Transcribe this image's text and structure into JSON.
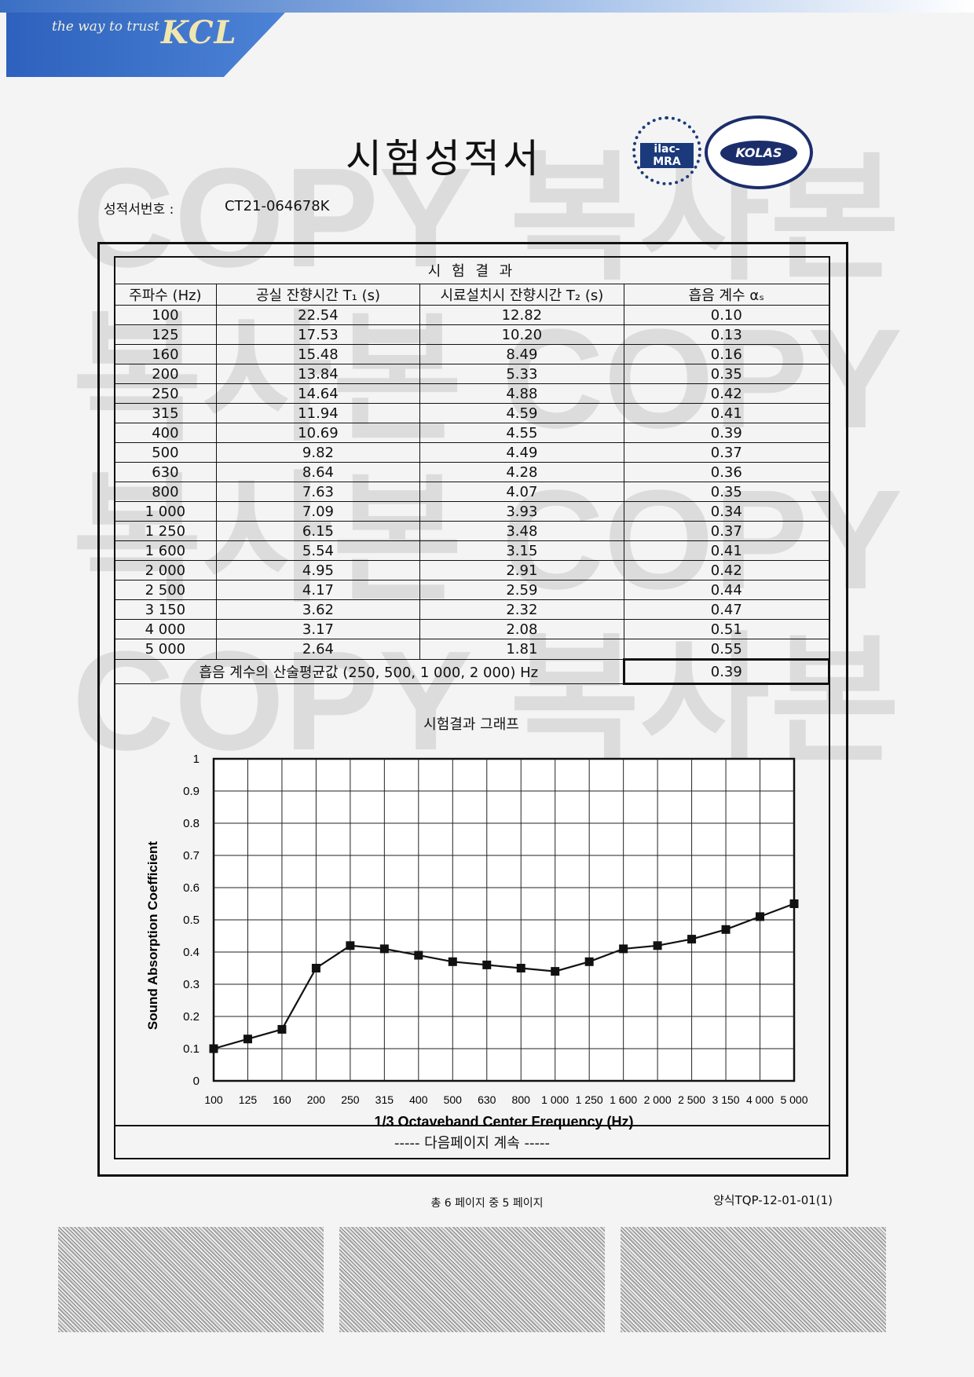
{
  "header": {
    "tagline": "the way to trust",
    "brand": "KCL",
    "title": "시험성적서",
    "report_label": "성적서번호 :",
    "report_no": "CT21-064678K"
  },
  "badges": {
    "ilac": "ilac-MRA",
    "kolas": "KOLAS"
  },
  "watermark_lines": [
    "COPY 복사본",
    "복사본 COPY",
    "복사본 COPY",
    "COPY 복사본"
  ],
  "results_table": {
    "caption": "시 험 결 과",
    "headers": [
      "주파수 (Hz)",
      "공실 잔향시간 T₁ (s)",
      "시료설치시 잔향시간 T₂ (s)",
      "흡음 계수 αₛ"
    ],
    "rows": [
      [
        "100",
        "22.54",
        "12.82",
        "0.10"
      ],
      [
        "125",
        "17.53",
        "10.20",
        "0.13"
      ],
      [
        "160",
        "15.48",
        "8.49",
        "0.16"
      ],
      [
        "200",
        "13.84",
        "5.33",
        "0.35"
      ],
      [
        "250",
        "14.64",
        "4.88",
        "0.42"
      ],
      [
        "315",
        "11.94",
        "4.59",
        "0.41"
      ],
      [
        "400",
        "10.69",
        "4.55",
        "0.39"
      ],
      [
        "500",
        "9.82",
        "4.49",
        "0.37"
      ],
      [
        "630",
        "8.64",
        "4.28",
        "0.36"
      ],
      [
        "800",
        "7.63",
        "4.07",
        "0.35"
      ],
      [
        "1 000",
        "7.09",
        "3.93",
        "0.34"
      ],
      [
        "1 250",
        "6.15",
        "3.48",
        "0.37"
      ],
      [
        "1 600",
        "5.54",
        "3.15",
        "0.41"
      ],
      [
        "2 000",
        "4.95",
        "2.91",
        "0.42"
      ],
      [
        "2 500",
        "4.17",
        "2.59",
        "0.44"
      ],
      [
        "3 150",
        "3.62",
        "2.32",
        "0.47"
      ],
      [
        "4 000",
        "3.17",
        "2.08",
        "0.51"
      ],
      [
        "5 000",
        "2.64",
        "1.81",
        "0.55"
      ]
    ],
    "average_label": "흡음 계수의 산술평균값 (250, 500, 1 000, 2 000) Hz",
    "average_value": "0.39"
  },
  "graph_caption": "시험결과 그래프",
  "chart_data": {
    "type": "line",
    "title": "",
    "xlabel": "1/3 Octaveband Center Frequency (Hz)",
    "ylabel": "Sound Absorption Coefficient",
    "categories": [
      "100",
      "125",
      "160",
      "200",
      "250",
      "315",
      "400",
      "500",
      "630",
      "800",
      "1 000",
      "1 250",
      "1 600",
      "2 000",
      "2 500",
      "3 150",
      "4 000",
      "5 000"
    ],
    "values": [
      0.1,
      0.13,
      0.16,
      0.35,
      0.42,
      0.41,
      0.39,
      0.37,
      0.36,
      0.35,
      0.34,
      0.37,
      0.41,
      0.42,
      0.44,
      0.47,
      0.51,
      0.55
    ],
    "y_ticks": [
      "0",
      "0.1",
      "0.2",
      "0.3",
      "0.4",
      "0.5",
      "0.6",
      "0.7",
      "0.8",
      "0.9",
      "1"
    ],
    "ylim": [
      0,
      1
    ],
    "grid": true,
    "marker": "square",
    "line_color": "#111111"
  },
  "footer": {
    "continue_text": "----- 다음페이지 계속 -----",
    "page_info": "총 6 페이지 중 5 페이지",
    "form_no": "양식TQP-12-01-01(1)"
  }
}
